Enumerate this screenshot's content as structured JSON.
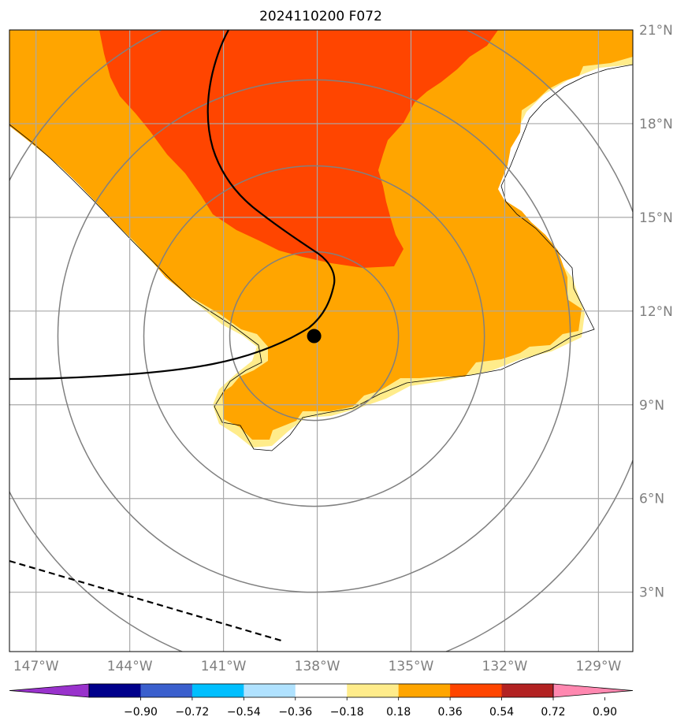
{
  "title": "2024110200 F072",
  "grid": {
    "lat_labels": [
      {
        "value": 21,
        "text": "21°N"
      },
      {
        "value": 18,
        "text": "18°N"
      },
      {
        "value": 15,
        "text": "15°N"
      },
      {
        "value": 12,
        "text": "12°N"
      },
      {
        "value": 9,
        "text": "9°N"
      },
      {
        "value": 6,
        "text": "6°N"
      },
      {
        "value": 3,
        "text": "3°N"
      }
    ],
    "lon_labels": [
      {
        "value": -147,
        "text": "147°W"
      },
      {
        "value": -144,
        "text": "144°W"
      },
      {
        "value": -141,
        "text": "141°W"
      },
      {
        "value": -138,
        "text": "138°W"
      },
      {
        "value": -135,
        "text": "135°W"
      },
      {
        "value": -132,
        "text": "132°W"
      },
      {
        "value": -129,
        "text": "129°W"
      }
    ],
    "lat_range": [
      1.1,
      21.0
    ],
    "lon_range": [
      -147.85,
      -127.9
    ]
  },
  "storm_center": {
    "lat": 11.2,
    "lon": -138.1
  },
  "range_rings_deg": [
    2.7,
    5.45,
    8.2,
    10.95
  ],
  "colorbar": {
    "ticks": [
      "−0.90",
      "−0.72",
      "−0.54",
      "−0.36",
      "−0.18",
      "0.18",
      "0.36",
      "0.54",
      "0.72",
      "0.90"
    ],
    "colors": [
      "#9932cc",
      "#00008b",
      "#3a5fcd",
      "#00bfff",
      "#b0e2ff",
      "#ffffff",
      "#ffec8b",
      "#ffa500",
      "#ff4500",
      "#b22222",
      "#ff88b0"
    ]
  },
  "field_colors": {
    "light": "#ffec8b",
    "orange": "#ffa500",
    "red": "#ff4500"
  },
  "lines": {
    "track": "solid",
    "boundary": "dashed"
  }
}
